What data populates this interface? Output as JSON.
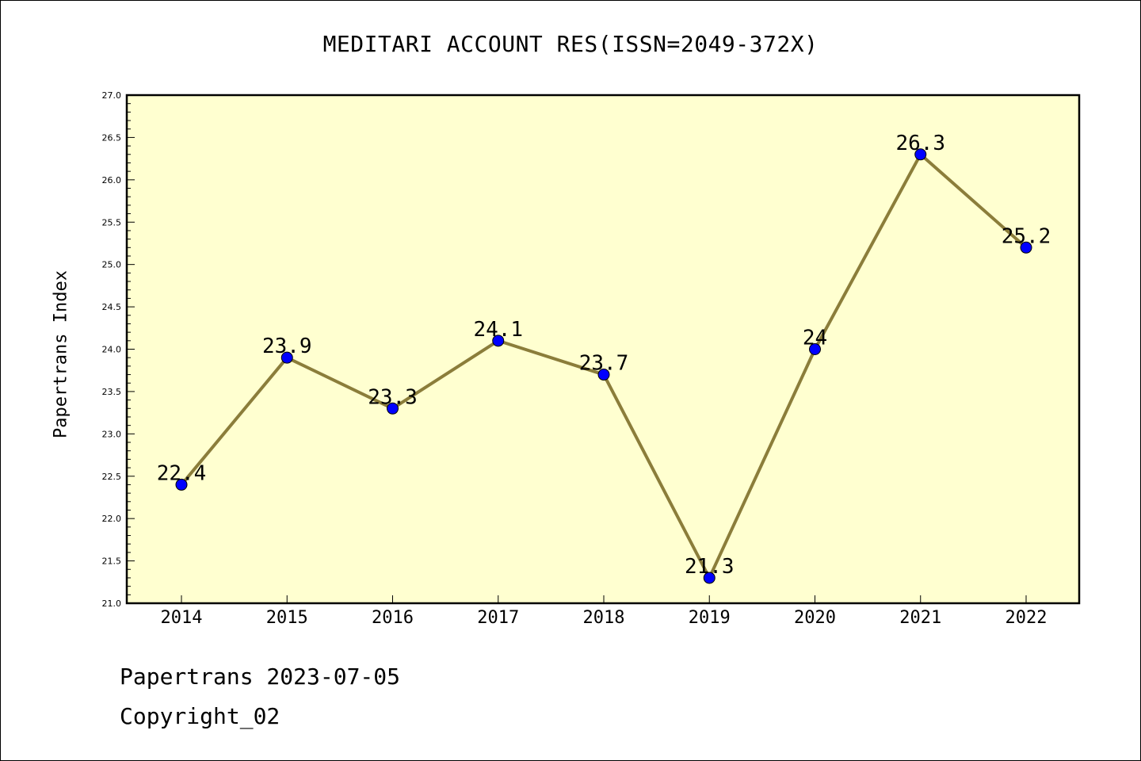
{
  "chart_data": {
    "type": "line",
    "title": "MEDITARI ACCOUNT RES(ISSN=2049-372X)",
    "xlabel": "",
    "ylabel": "Papertrans Index",
    "categories": [
      "2014",
      "2015",
      "2016",
      "2017",
      "2018",
      "2019",
      "2020",
      "2021",
      "2022"
    ],
    "series": [
      {
        "values": [
          22.4,
          23.9,
          23.3,
          24.1,
          23.7,
          21.3,
          24.0,
          26.3,
          25.2
        ]
      }
    ],
    "point_labels": [
      "22.4",
      "23.9",
      "23.3",
      "24.1",
      "23.7",
      "21.3",
      "24",
      "26.3",
      "25.2"
    ],
    "ylim": [
      21.0,
      27.0
    ],
    "yticks": [
      "21.0",
      "21.5",
      "22.0",
      "22.5",
      "23.0",
      "23.5",
      "24.0",
      "24.5",
      "25.0",
      "25.5",
      "26.0",
      "26.5",
      "27.0"
    ],
    "grid": false,
    "colors": {
      "plot_background": "#ffffd0",
      "line": "#8b7d3a",
      "marker": "#0000ff"
    }
  },
  "footer": {
    "line1": "Papertrans 2023-07-05",
    "line2": "Copyright_02"
  }
}
